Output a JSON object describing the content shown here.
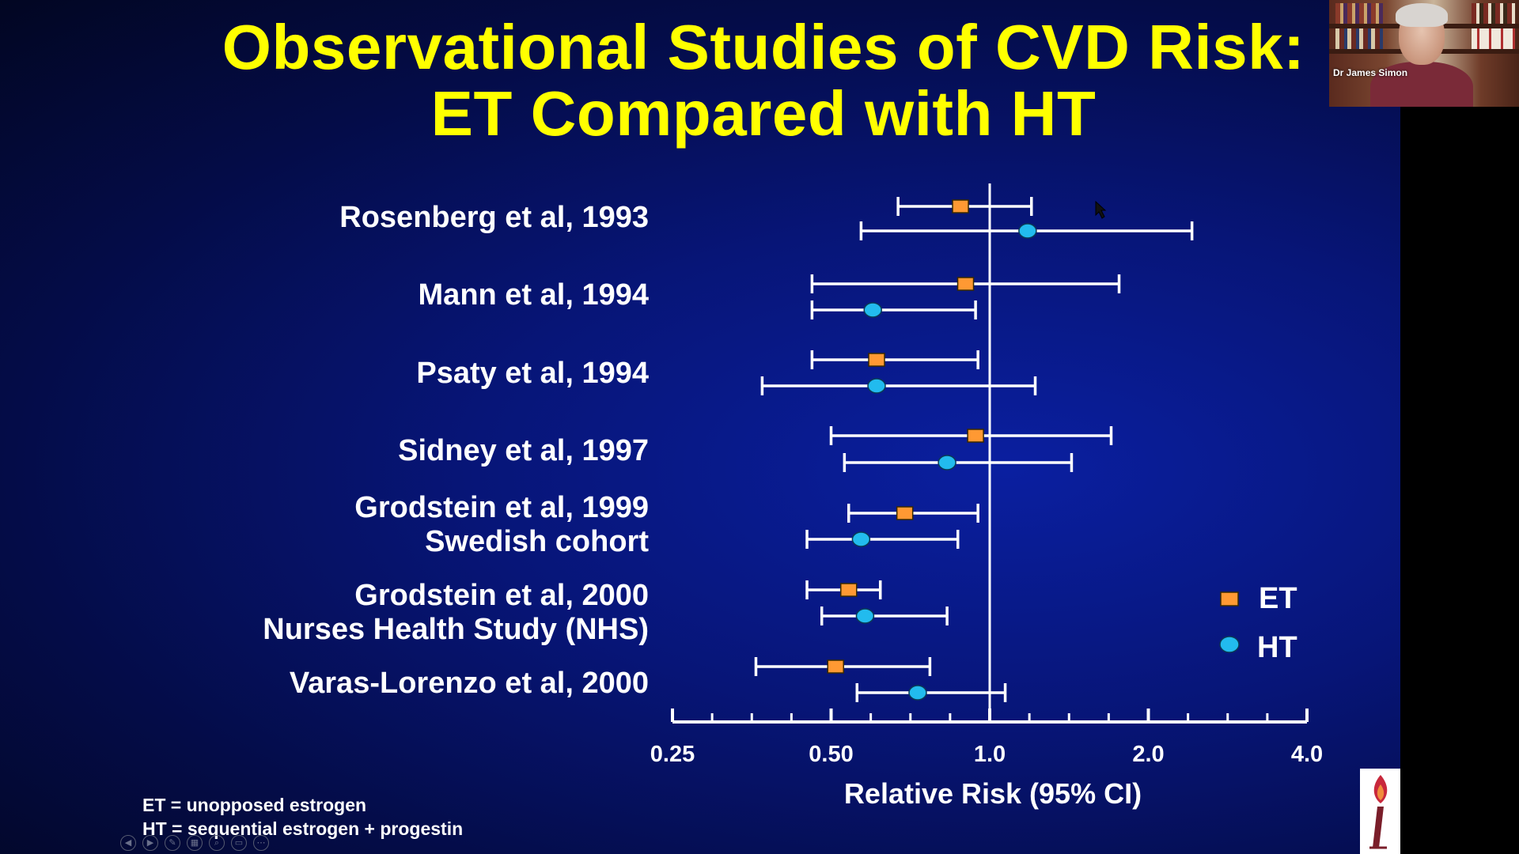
{
  "slide": {
    "title_line1": "Observational Studies of CVD Risk:",
    "title_line2": "ET Compared with HT",
    "footnote_et": "ET = unopposed estrogen",
    "footnote_ht": "HT = sequential estrogen + progestin"
  },
  "video": {
    "participant_name": "Dr James Simon"
  },
  "toolbar": {
    "icons": [
      "prev-icon",
      "next-icon",
      "pen-icon",
      "slides-icon",
      "zoom-icon",
      "subtitles-icon",
      "more-icon"
    ]
  },
  "colors": {
    "et_marker": "#ff9933",
    "ht_marker": "#22bbee",
    "title": "#ffff00",
    "ink": "#ffffff"
  },
  "chart_data": {
    "type": "forest",
    "title": "Observational Studies of CVD Risk: ET Compared with HT",
    "xlabel": "Relative Risk (95% CI)",
    "x_scale": "log2",
    "xlim": [
      0.25,
      4.0
    ],
    "xticks": [
      0.25,
      0.5,
      1.0,
      2.0,
      4.0
    ],
    "xtick_labels": [
      "0.25",
      "0.50",
      "1.0",
      "2.0",
      "4.0"
    ],
    "reference_line": 1.0,
    "legend": [
      {
        "name": "ET",
        "marker": "square"
      },
      {
        "name": "HT",
        "marker": "circle"
      }
    ],
    "studies": [
      {
        "label_lines": [
          "Rosenberg et al, 1993"
        ],
        "ET": {
          "rr": 0.88,
          "lo": 0.67,
          "hi": 1.2
        },
        "HT": {
          "rr": 1.18,
          "lo": 0.57,
          "hi": 2.42
        }
      },
      {
        "label_lines": [
          "Mann et al, 1994"
        ],
        "ET": {
          "rr": 0.9,
          "lo": 0.46,
          "hi": 1.76
        },
        "HT": {
          "rr": 0.6,
          "lo": 0.46,
          "hi": 0.94
        }
      },
      {
        "label_lines": [
          "Psaty et al, 1994"
        ],
        "ET": {
          "rr": 0.61,
          "lo": 0.46,
          "hi": 0.95
        },
        "HT": {
          "rr": 0.61,
          "lo": 0.37,
          "hi": 1.22
        }
      },
      {
        "label_lines": [
          "Sidney et al, 1997"
        ],
        "ET": {
          "rr": 0.94,
          "lo": 0.5,
          "hi": 1.7
        },
        "HT": {
          "rr": 0.83,
          "lo": 0.53,
          "hi": 1.43
        }
      },
      {
        "label_lines": [
          "Grodstein et al, 1999",
          "Swedish cohort"
        ],
        "ET": {
          "rr": 0.69,
          "lo": 0.54,
          "hi": 0.95
        },
        "HT": {
          "rr": 0.57,
          "lo": 0.45,
          "hi": 0.87
        }
      },
      {
        "label_lines": [
          "Grodstein et al, 2000",
          "Nurses Health Study (NHS)"
        ],
        "ET": {
          "rr": 0.54,
          "lo": 0.45,
          "hi": 0.62
        },
        "HT": {
          "rr": 0.58,
          "lo": 0.48,
          "hi": 0.83
        }
      },
      {
        "label_lines": [
          "Varas-Lorenzo et al, 2000"
        ],
        "ET": {
          "rr": 0.51,
          "lo": 0.36,
          "hi": 0.77
        },
        "HT": {
          "rr": 0.73,
          "lo": 0.56,
          "hi": 1.07
        }
      }
    ]
  }
}
